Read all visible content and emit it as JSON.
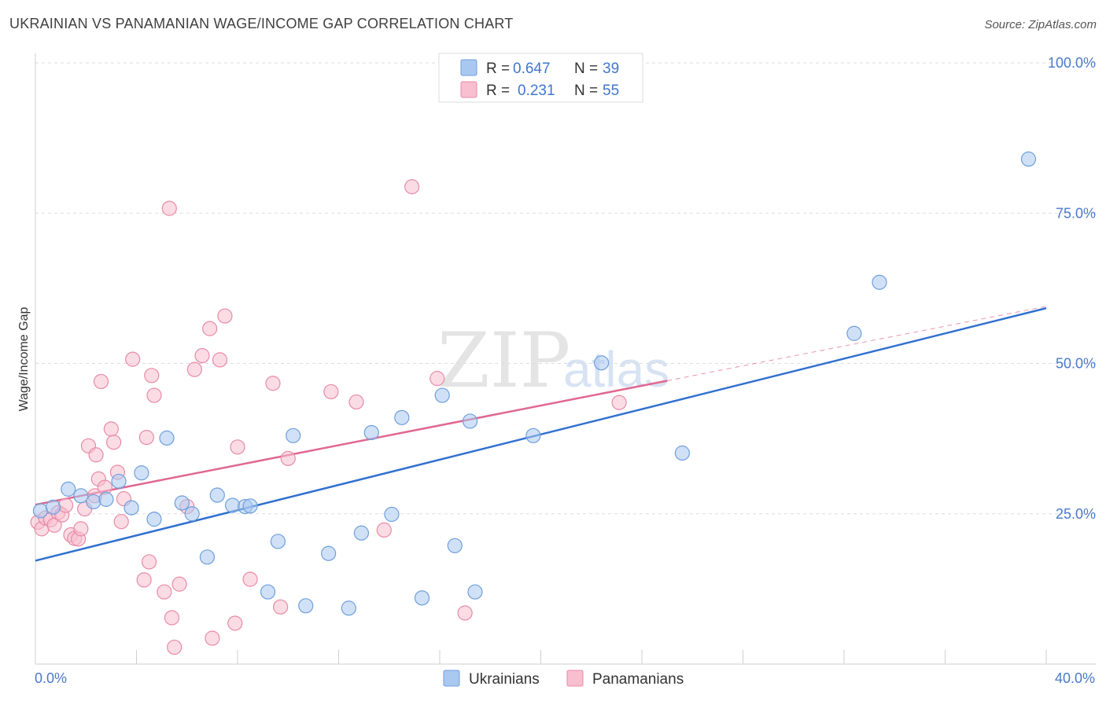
{
  "header": {
    "title": "UKRAINIAN VS PANAMANIAN WAGE/INCOME GAP CORRELATION CHART",
    "source": "Source: ZipAtlas.com"
  },
  "watermark": {
    "zip": "ZIP",
    "atlas": "atlas"
  },
  "legend": {
    "rows": [
      {
        "r_label": "R =",
        "r_value": "0.647",
        "n_label": "N =",
        "n_value": "39"
      },
      {
        "r_label": "R =",
        "r_value": "0.231",
        "n_label": "N =",
        "n_value": "55"
      }
    ]
  },
  "bottom_legend": {
    "series1": "Ukrainians",
    "series2": "Panamanians"
  },
  "colors": {
    "ukr_fill": "#a9c8f0",
    "ukr_stroke": "#6f9fdc",
    "ukr_line": "#3070d0",
    "pan_fill": "#f7bfd0",
    "pan_stroke": "#e88aa8",
    "pan_line": "#e06890",
    "axis_text": "#4a7ac8"
  },
  "chart_data": {
    "type": "scatter",
    "title": "UKRAINIAN VS PANAMANIAN WAGE/INCOME GAP CORRELATION CHART",
    "xlabel": "",
    "ylabel": "Wage/Income Gap",
    "xlim": [
      0,
      40
    ],
    "ylim": [
      0,
      100
    ],
    "x_tick_labels": [
      "0.0%",
      "40.0%"
    ],
    "y_tick_labels": [
      {
        "value": 100,
        "label": "100.0%"
      },
      {
        "value": 75,
        "label": "75.0%"
      },
      {
        "value": 50,
        "label": "50.0%"
      },
      {
        "value": 25,
        "label": "25.0%"
      }
    ],
    "series": [
      {
        "name": "Ukrainians",
        "r": 0.647,
        "n": 39,
        "trend": {
          "x": [
            0,
            40
          ],
          "y": [
            17.2,
            59.2
          ]
        },
        "points": [
          [
            0.2,
            25.5
          ],
          [
            0.7,
            26.1
          ],
          [
            1.3,
            29.1
          ],
          [
            1.8,
            28.0
          ],
          [
            2.3,
            27.0
          ],
          [
            2.8,
            27.4
          ],
          [
            3.3,
            30.4
          ],
          [
            3.8,
            26.0
          ],
          [
            4.2,
            31.8
          ],
          [
            4.7,
            24.1
          ],
          [
            5.2,
            37.6
          ],
          [
            5.8,
            26.8
          ],
          [
            6.2,
            25.0
          ],
          [
            6.8,
            17.8
          ],
          [
            7.2,
            28.1
          ],
          [
            7.8,
            26.4
          ],
          [
            8.3,
            26.2
          ],
          [
            8.5,
            26.3
          ],
          [
            9.2,
            12.0
          ],
          [
            9.6,
            20.4
          ],
          [
            10.2,
            38.0
          ],
          [
            10.7,
            9.7
          ],
          [
            11.6,
            18.4
          ],
          [
            12.4,
            9.3
          ],
          [
            12.9,
            21.8
          ],
          [
            13.3,
            38.5
          ],
          [
            14.1,
            24.9
          ],
          [
            14.5,
            41.0
          ],
          [
            15.3,
            11.0
          ],
          [
            16.1,
            44.7
          ],
          [
            16.6,
            19.7
          ],
          [
            17.2,
            40.4
          ],
          [
            17.4,
            12.0
          ],
          [
            19.7,
            38.0
          ],
          [
            22.4,
            50.1
          ],
          [
            25.6,
            35.1
          ],
          [
            32.4,
            55.0
          ],
          [
            33.4,
            63.5
          ],
          [
            39.3,
            84.0
          ]
        ]
      },
      {
        "name": "Panamanians",
        "r": 0.231,
        "n": 55,
        "trend": {
          "x": [
            0,
            40
          ],
          "y": [
            26.5,
            59.5
          ]
        },
        "trend_solid_end_x": 25.0,
        "points": [
          [
            0.1,
            23.6
          ],
          [
            0.25,
            22.5
          ],
          [
            0.4,
            24.3
          ],
          [
            0.6,
            24.0
          ],
          [
            0.75,
            23.1
          ],
          [
            0.9,
            25.2
          ],
          [
            1.05,
            24.8
          ],
          [
            1.2,
            26.4
          ],
          [
            1.4,
            21.5
          ],
          [
            1.55,
            20.9
          ],
          [
            1.7,
            20.8
          ],
          [
            1.8,
            22.5
          ],
          [
            1.95,
            25.8
          ],
          [
            2.1,
            36.3
          ],
          [
            2.35,
            28.0
          ],
          [
            2.4,
            34.8
          ],
          [
            2.5,
            30.8
          ],
          [
            2.6,
            47.0
          ],
          [
            2.75,
            29.4
          ],
          [
            3.0,
            39.1
          ],
          [
            3.1,
            36.9
          ],
          [
            3.25,
            31.9
          ],
          [
            3.4,
            23.7
          ],
          [
            3.5,
            27.5
          ],
          [
            3.85,
            50.7
          ],
          [
            4.3,
            14.0
          ],
          [
            4.4,
            37.7
          ],
          [
            4.5,
            17.0
          ],
          [
            4.6,
            48.0
          ],
          [
            4.7,
            44.7
          ],
          [
            5.1,
            12.0
          ],
          [
            5.3,
            75.8
          ],
          [
            5.4,
            7.7
          ],
          [
            5.5,
            2.8
          ],
          [
            5.7,
            13.3
          ],
          [
            6.0,
            26.2
          ],
          [
            6.3,
            49.0
          ],
          [
            6.6,
            51.3
          ],
          [
            6.9,
            55.8
          ],
          [
            7.0,
            4.3
          ],
          [
            7.3,
            50.6
          ],
          [
            7.5,
            57.9
          ],
          [
            7.9,
            6.8
          ],
          [
            8.0,
            36.1
          ],
          [
            8.5,
            14.1
          ],
          [
            9.4,
            46.7
          ],
          [
            9.7,
            9.5
          ],
          [
            10.0,
            34.2
          ],
          [
            11.7,
            45.3
          ],
          [
            12.7,
            43.6
          ],
          [
            13.8,
            22.3
          ],
          [
            14.9,
            79.4
          ],
          [
            15.9,
            47.5
          ],
          [
            17.0,
            8.5
          ],
          [
            23.1,
            43.5
          ]
        ]
      }
    ]
  }
}
